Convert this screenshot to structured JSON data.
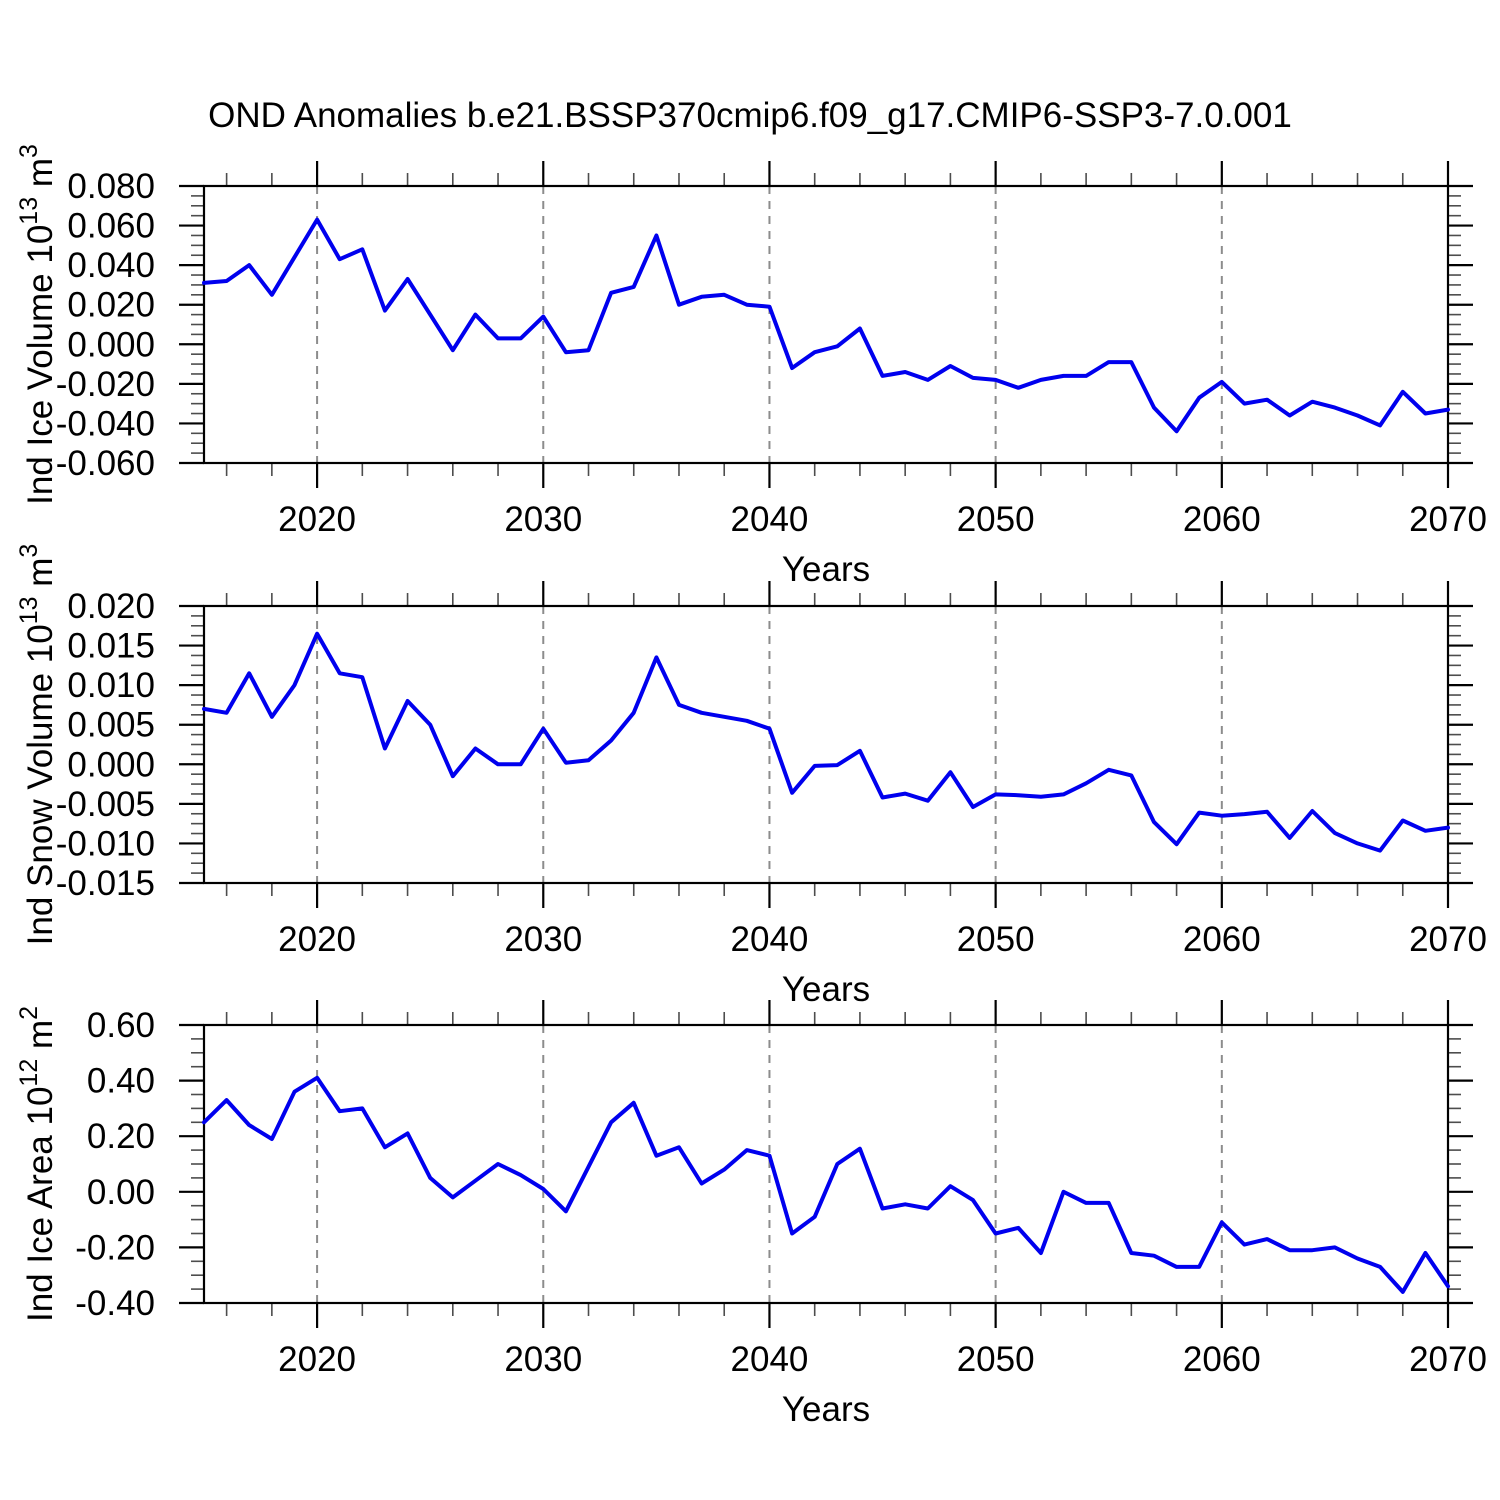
{
  "title": "OND Anomalies b.e21.BSSP370cmip6.f09_g17.CMIP6-SSP3-7.0.001",
  "colors": {
    "line": "#0000ee",
    "grid": "#8c8c8c",
    "axis": "#000000",
    "minor_tick": "#4d4d4d"
  },
  "chart_data": [
    {
      "type": "line",
      "name": "ice-volume",
      "ylabel": "Ind Ice Volume 10^13 m^3",
      "ylabel_parts": [
        {
          "t": "Ind Ice Volume 10"
        },
        {
          "t": "13",
          "sup": true
        },
        {
          "t": " m"
        },
        {
          "t": "3",
          "sup": true
        }
      ],
      "xlabel": "Years",
      "ylim": [
        -0.06,
        0.08
      ],
      "ytick_values": [
        0.08,
        0.06,
        0.04,
        0.02,
        0.0,
        -0.02,
        -0.04,
        -0.06
      ],
      "ytick_labels": [
        "0.080",
        "0.060",
        "0.040",
        "0.020",
        "0.000",
        "-0.020",
        "-0.040",
        "-0.060"
      ],
      "ytick_step": 0.02,
      "y_minor_step": 0.005,
      "xlim": [
        2015,
        2070
      ],
      "xticks": [
        2020,
        2030,
        2040,
        2050,
        2060,
        2070
      ],
      "x_minor_step": 2,
      "grid_x": [
        2020,
        2030,
        2040,
        2050,
        2060
      ],
      "x": [
        2015,
        2016,
        2017,
        2018,
        2019,
        2020,
        2021,
        2022,
        2023,
        2024,
        2025,
        2026,
        2027,
        2028,
        2029,
        2030,
        2031,
        2032,
        2033,
        2034,
        2035,
        2036,
        2037,
        2038,
        2039,
        2040,
        2041,
        2042,
        2043,
        2044,
        2045,
        2046,
        2047,
        2048,
        2049,
        2050,
        2051,
        2052,
        2053,
        2054,
        2055,
        2056,
        2057,
        2058,
        2059,
        2060,
        2061,
        2062,
        2063,
        2064,
        2065,
        2066,
        2067,
        2068,
        2069,
        2070
      ],
      "values": [
        0.031,
        0.032,
        0.04,
        0.025,
        0.044,
        0.063,
        0.043,
        0.048,
        0.017,
        0.033,
        0.015,
        -0.003,
        0.015,
        0.003,
        0.003,
        0.014,
        -0.004,
        -0.003,
        0.026,
        0.029,
        0.055,
        0.02,
        0.024,
        0.025,
        0.02,
        0.019,
        -0.012,
        -0.004,
        -0.001,
        0.008,
        -0.016,
        -0.014,
        -0.018,
        -0.011,
        -0.017,
        -0.018,
        -0.022,
        -0.018,
        -0.016,
        -0.016,
        -0.009,
        -0.009,
        -0.032,
        -0.044,
        -0.027,
        -0.019,
        -0.03,
        -0.028,
        -0.036,
        -0.029,
        -0.032,
        -0.036,
        -0.041,
        -0.024,
        -0.035,
        -0.033
      ]
    },
    {
      "type": "line",
      "name": "snow-volume",
      "ylabel": "Ind Snow Volume 10^13 m^3",
      "ylabel_parts": [
        {
          "t": "Ind Snow Volume 10"
        },
        {
          "t": "13",
          "sup": true
        },
        {
          "t": " m"
        },
        {
          "t": "3",
          "sup": true
        }
      ],
      "xlabel": "Years",
      "ylim": [
        -0.015,
        0.02
      ],
      "ytick_values": [
        0.02,
        0.015,
        0.01,
        0.005,
        0.0,
        -0.005,
        -0.01,
        -0.015
      ],
      "ytick_labels": [
        "0.020",
        "0.015",
        "0.010",
        "0.005",
        "0.000",
        "-0.005",
        "-0.010",
        "-0.015"
      ],
      "ytick_step": 0.005,
      "y_minor_step": 0.00125,
      "xlim": [
        2015,
        2070
      ],
      "xticks": [
        2020,
        2030,
        2040,
        2050,
        2060,
        2070
      ],
      "x_minor_step": 2,
      "grid_x": [
        2020,
        2030,
        2040,
        2050,
        2060
      ],
      "x": [
        2015,
        2016,
        2017,
        2018,
        2019,
        2020,
        2021,
        2022,
        2023,
        2024,
        2025,
        2026,
        2027,
        2028,
        2029,
        2030,
        2031,
        2032,
        2033,
        2034,
        2035,
        2036,
        2037,
        2038,
        2039,
        2040,
        2041,
        2042,
        2043,
        2044,
        2045,
        2046,
        2047,
        2048,
        2049,
        2050,
        2051,
        2052,
        2053,
        2054,
        2055,
        2056,
        2057,
        2058,
        2059,
        2060,
        2061,
        2062,
        2063,
        2064,
        2065,
        2066,
        2067,
        2068,
        2069,
        2070
      ],
      "values": [
        0.007,
        0.0065,
        0.0115,
        0.006,
        0.01,
        0.0165,
        0.0115,
        0.011,
        0.002,
        0.008,
        0.005,
        -0.0015,
        0.002,
        0.0,
        0.0,
        0.0045,
        0.0002,
        0.0005,
        0.003,
        0.0065,
        0.0135,
        0.0075,
        0.0065,
        0.006,
        0.0055,
        0.0045,
        -0.0036,
        -0.0002,
        -0.0001,
        0.0017,
        -0.0042,
        -0.0037,
        -0.0046,
        -0.001,
        -0.0054,
        -0.0038,
        -0.0039,
        -0.0041,
        -0.0038,
        -0.0024,
        -0.0007,
        -0.0014,
        -0.0073,
        -0.0101,
        -0.0061,
        -0.0065,
        -0.0063,
        -0.006,
        -0.0093,
        -0.0059,
        -0.0087,
        -0.01,
        -0.0109,
        -0.0071,
        -0.0084,
        -0.008
      ]
    },
    {
      "type": "line",
      "name": "ice-area",
      "ylabel": "Ind Ice Area 10^12 m^2",
      "ylabel_parts": [
        {
          "t": "Ind Ice Area 10"
        },
        {
          "t": "12",
          "sup": true
        },
        {
          "t": " m"
        },
        {
          "t": "2",
          "sup": true
        }
      ],
      "xlabel": "Years",
      "ylim": [
        -0.4,
        0.6
      ],
      "ytick_values": [
        0.6,
        0.4,
        0.2,
        0.0,
        -0.2,
        -0.4
      ],
      "ytick_labels": [
        "0.60",
        "0.40",
        "0.20",
        "0.00",
        "-0.20",
        "-0.40"
      ],
      "ytick_step": 0.2,
      "y_minor_step": 0.05,
      "xlim": [
        2015,
        2070
      ],
      "xticks": [
        2020,
        2030,
        2040,
        2050,
        2060,
        2070
      ],
      "x_minor_step": 2,
      "grid_x": [
        2020,
        2030,
        2040,
        2050,
        2060
      ],
      "x": [
        2015,
        2016,
        2017,
        2018,
        2019,
        2020,
        2021,
        2022,
        2023,
        2024,
        2025,
        2026,
        2027,
        2028,
        2029,
        2030,
        2031,
        2032,
        2033,
        2034,
        2035,
        2036,
        2037,
        2038,
        2039,
        2040,
        2041,
        2042,
        2043,
        2044,
        2045,
        2046,
        2047,
        2048,
        2049,
        2050,
        2051,
        2052,
        2053,
        2054,
        2055,
        2056,
        2057,
        2058,
        2059,
        2060,
        2061,
        2062,
        2063,
        2064,
        2065,
        2066,
        2067,
        2068,
        2069,
        2070
      ],
      "values": [
        0.25,
        0.33,
        0.24,
        0.19,
        0.36,
        0.41,
        0.29,
        0.3,
        0.16,
        0.21,
        0.05,
        -0.02,
        0.04,
        0.1,
        0.06,
        0.01,
        -0.07,
        0.09,
        0.25,
        0.32,
        0.13,
        0.16,
        0.03,
        0.08,
        0.15,
        0.13,
        -0.15,
        -0.09,
        0.1,
        0.155,
        -0.06,
        -0.045,
        -0.06,
        0.02,
        -0.03,
        -0.15,
        -0.13,
        -0.22,
        0.0,
        -0.04,
        -0.04,
        -0.22,
        -0.23,
        -0.27,
        -0.27,
        -0.11,
        -0.19,
        -0.17,
        -0.21,
        -0.21,
        -0.2,
        -0.24,
        -0.27,
        -0.36,
        -0.22,
        -0.34
      ]
    }
  ]
}
